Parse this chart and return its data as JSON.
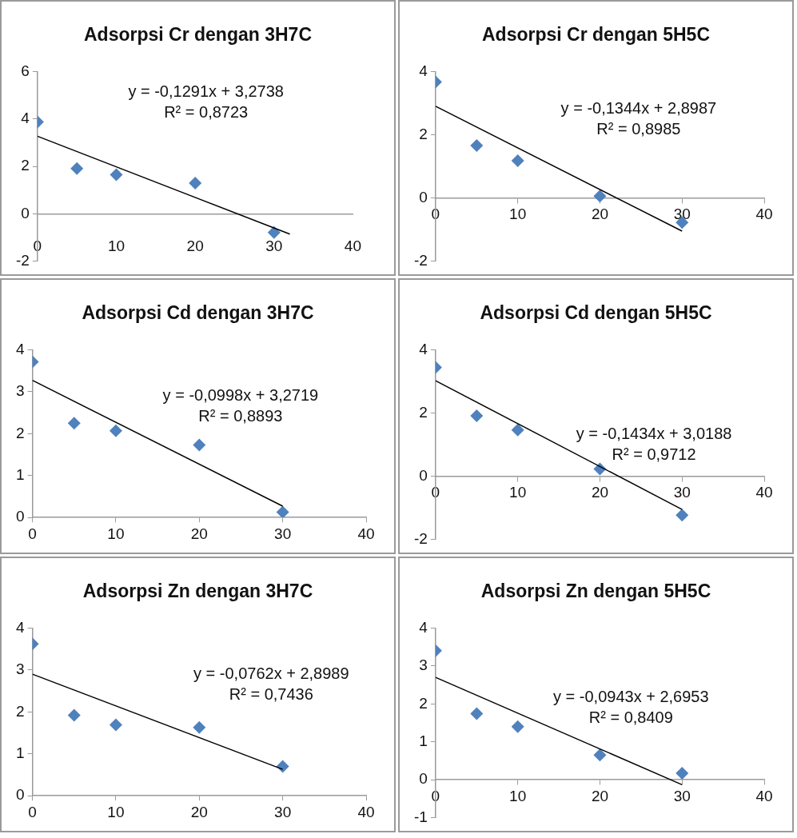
{
  "chart_data": [
    {
      "type": "scatter",
      "title": "Adsorpsi Cr dengan 3H7C",
      "marker": "diamond",
      "xlim": [
        0,
        40
      ],
      "xticks": [
        0,
        10,
        20,
        30,
        40
      ],
      "ylim": [
        -2,
        6
      ],
      "yticks": [
        -2,
        0,
        2,
        4,
        6
      ],
      "annotations": [
        "y = -0,1291x + 3,2738",
        "R² = 0,8723"
      ],
      "series": [
        {
          "type": "scatter",
          "color": "#4f81bd",
          "x": [
            0,
            5,
            10,
            20,
            30
          ],
          "values": [
            3.87,
            1.91,
            1.65,
            1.29,
            -0.79
          ]
        },
        {
          "type": "line",
          "color": "#000000",
          "marker": "none",
          "x": [
            0,
            32
          ],
          "values": [
            3.27,
            -0.86
          ]
        }
      ]
    },
    {
      "type": "scatter",
      "title": "Adsorpsi Cr dengan 5H5C",
      "marker": "diamond",
      "xlim": [
        0,
        40
      ],
      "xticks": [
        0,
        10,
        20,
        30,
        40
      ],
      "ylim": [
        -2,
        4
      ],
      "yticks": [
        -2,
        0,
        2,
        4
      ],
      "annotations": [
        "y = -0,1344x + 2,8987",
        "R² = 0,8985"
      ],
      "series": [
        {
          "type": "scatter",
          "color": "#4f81bd",
          "x": [
            0,
            5,
            10,
            20,
            30
          ],
          "values": [
            3.67,
            1.66,
            1.18,
            0.06,
            -0.78
          ]
        },
        {
          "type": "line",
          "color": "#000000",
          "marker": "none",
          "x": [
            0,
            30
          ],
          "values": [
            2.9,
            -1.05
          ]
        }
      ]
    },
    {
      "type": "scatter",
      "title": "Adsorpsi Cd dengan 3H7C",
      "marker": "diamond",
      "xlim": [
        0,
        40
      ],
      "xticks": [
        0,
        10,
        20,
        30,
        40
      ],
      "ylim": [
        0,
        4
      ],
      "yticks": [
        0,
        1,
        2,
        3,
        4
      ],
      "annotations": [
        "y = -0,0998x + 3,2719",
        "R² = 0,8893"
      ],
      "series": [
        {
          "type": "scatter",
          "color": "#4f81bd",
          "x": [
            0,
            5,
            10,
            20,
            30
          ],
          "values": [
            3.71,
            2.25,
            2.07,
            1.73,
            0.13
          ]
        },
        {
          "type": "line",
          "color": "#000000",
          "marker": "none",
          "x": [
            0,
            30
          ],
          "values": [
            3.27,
            0.27
          ]
        }
      ]
    },
    {
      "type": "scatter",
      "title": "Adsorpsi Cd dengan 5H5C",
      "marker": "diamond",
      "xlim": [
        0,
        40
      ],
      "xticks": [
        0,
        10,
        20,
        30,
        40
      ],
      "ylim": [
        -2,
        4
      ],
      "yticks": [
        -2,
        0,
        2,
        4
      ],
      "annotations": [
        "y = -0,1434x + 3,0188",
        "R² = 0,9712"
      ],
      "series": [
        {
          "type": "scatter",
          "color": "#4f81bd",
          "x": [
            0,
            5,
            10,
            20,
            30
          ],
          "values": [
            3.44,
            1.91,
            1.46,
            0.23,
            -1.23
          ]
        },
        {
          "type": "line",
          "color": "#000000",
          "marker": "none",
          "x": [
            0,
            30
          ],
          "values": [
            3.02,
            -1.05
          ]
        }
      ]
    },
    {
      "type": "scatter",
      "title": "Adsorpsi Zn dengan 3H7C",
      "marker": "diamond",
      "xlim": [
        0,
        40
      ],
      "xticks": [
        0,
        10,
        20,
        30,
        40
      ],
      "ylim": [
        0,
        4
      ],
      "yticks": [
        0,
        1,
        2,
        3,
        4
      ],
      "annotations": [
        "y = -0,0762x + 2,8989",
        "R² = 0,7436"
      ],
      "series": [
        {
          "type": "scatter",
          "color": "#4f81bd",
          "x": [
            0,
            5,
            10,
            20,
            30
          ],
          "values": [
            3.62,
            1.92,
            1.69,
            1.63,
            0.7
          ]
        },
        {
          "type": "line",
          "color": "#000000",
          "marker": "none",
          "x": [
            0,
            30
          ],
          "values": [
            2.9,
            0.63
          ]
        }
      ]
    },
    {
      "type": "scatter",
      "title": "Adsorpsi Zn dengan 5H5C",
      "marker": "diamond",
      "xlim": [
        0,
        40
      ],
      "xticks": [
        0,
        10,
        20,
        30,
        40
      ],
      "ylim": [
        -1,
        4
      ],
      "yticks": [
        -1,
        0,
        1,
        2,
        3,
        4
      ],
      "annotations": [
        "y = -0,0943x + 2,6953",
        "R² = 0,8409"
      ],
      "series": [
        {
          "type": "scatter",
          "color": "#4f81bd",
          "x": [
            0,
            5,
            10,
            20,
            30
          ],
          "values": [
            3.4,
            1.74,
            1.4,
            0.65,
            0.17
          ]
        },
        {
          "type": "line",
          "color": "#000000",
          "marker": "none",
          "x": [
            0,
            30
          ],
          "values": [
            2.7,
            -0.13
          ]
        }
      ]
    }
  ]
}
